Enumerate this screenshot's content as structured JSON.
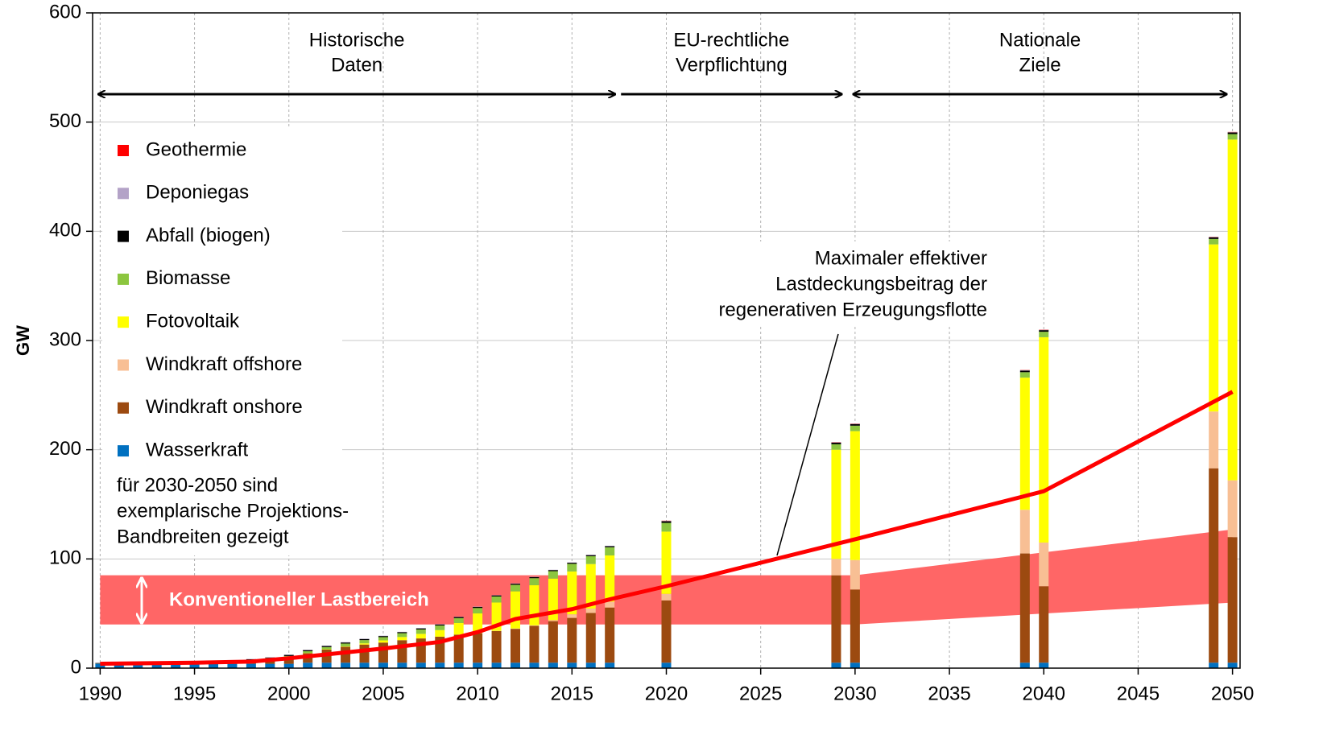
{
  "chart_data": {
    "type": "bar",
    "stacked": true,
    "ylabel": "GW",
    "xlim": [
      1989.6,
      2050.4
    ],
    "xticks": [
      1990,
      1995,
      2000,
      2005,
      2010,
      2015,
      2020,
      2025,
      2030,
      2035,
      2040,
      2045,
      2050
    ],
    "ylim": [
      0,
      600
    ],
    "yticks": [
      0,
      100,
      200,
      300,
      400,
      500,
      600
    ],
    "grid": true,
    "x": [
      1990,
      1991,
      1992,
      1993,
      1994,
      1995,
      1996,
      1997,
      1998,
      1999,
      2000,
      2001,
      2002,
      2003,
      2004,
      2005,
      2006,
      2007,
      2008,
      2009,
      2010,
      2011,
      2012,
      2013,
      2014,
      2015,
      2016,
      2017,
      2020,
      2029,
      2030,
      2039,
      2040,
      2049,
      2050
    ],
    "series": [
      {
        "name": "Wasserkraft",
        "color": "#0070c0",
        "values": [
          4,
          4,
          4,
          4,
          4,
          4,
          4,
          4,
          4,
          4,
          4,
          5,
          5,
          5,
          5,
          5,
          5,
          5,
          5,
          5,
          5,
          5,
          5,
          5,
          5,
          5,
          5,
          5,
          5,
          5,
          5,
          5,
          5,
          5,
          5
        ]
      },
      {
        "name": "Windkraft onshore",
        "color": "#9c4a10",
        "values": [
          0,
          0.1,
          0.2,
          0.3,
          0.6,
          1.1,
          1.5,
          2,
          2.9,
          4.4,
          6,
          8.8,
          12,
          14.6,
          16.6,
          18.4,
          20.6,
          22.2,
          23.8,
          25.7,
          27,
          29,
          31,
          33.7,
          38,
          41,
          45.5,
          50.5,
          57,
          80,
          67,
          100,
          70,
          178,
          115
        ]
      },
      {
        "name": "Windkraft offshore",
        "color": "#f8bf94",
        "values": [
          0,
          0,
          0,
          0,
          0,
          0,
          0,
          0,
          0,
          0,
          0,
          0,
          0,
          0,
          0,
          0,
          0,
          0,
          0,
          0,
          0.1,
          0.2,
          0.3,
          0.5,
          1,
          3.3,
          4.1,
          5.4,
          6,
          15,
          27,
          40,
          40,
          52,
          52
        ]
      },
      {
        "name": "Fotovoltaik",
        "color": "#ffff00",
        "values": [
          0,
          0,
          0,
          0,
          0,
          0,
          0,
          0,
          0,
          0,
          0.1,
          0.2,
          0.3,
          0.4,
          1.1,
          2,
          2.9,
          4.2,
          6,
          10.6,
          18,
          25.9,
          34,
          36.7,
          38,
          39.2,
          40.7,
          42.3,
          57,
          100,
          118,
          121,
          188,
          153,
          312
        ]
      },
      {
        "name": "Biomasse",
        "color": "#8cc63f",
        "values": [
          0.2,
          0.2,
          0.3,
          0.3,
          0.4,
          0.5,
          0.6,
          0.7,
          0.8,
          0.9,
          1,
          1.5,
          2,
          2.5,
          3,
          3,
          3.5,
          4,
          4.2,
          4.5,
          5,
          5.5,
          6,
          6.5,
          6.8,
          7,
          7.2,
          7.5,
          8,
          5,
          5,
          5,
          5,
          5,
          5
        ]
      },
      {
        "name": "Abfall (biogen)",
        "color": "#000000",
        "values": [
          0.5,
          0.5,
          0.5,
          0.5,
          0.5,
          0.5,
          0.5,
          0.5,
          0.5,
          0.5,
          1,
          1,
          1,
          1,
          1,
          1,
          1,
          1,
          1,
          1,
          1,
          1,
          1,
          1,
          1,
          1,
          1,
          1,
          1.5,
          1.5,
          1.5,
          1.5,
          1.5,
          1.5,
          1.5
        ]
      },
      {
        "name": "Deponiegas",
        "color": "#b3a2c7",
        "values": [
          0.2,
          0.2,
          0.2,
          0.2,
          0.2,
          0.2,
          0.2,
          0.2,
          0.2,
          0.2,
          0.3,
          0.3,
          0.3,
          0.3,
          0.3,
          0.3,
          0.3,
          0.3,
          0.3,
          0.3,
          0.3,
          0.3,
          0.3,
          0.3,
          0.3,
          0.3,
          0.3,
          0.3,
          0.3,
          0.3,
          0.3,
          0.3,
          0.3,
          0.3,
          0.3
        ]
      },
      {
        "name": "Geothermie",
        "color": "#ff0000",
        "values": [
          0,
          0,
          0,
          0,
          0,
          0,
          0,
          0,
          0,
          0,
          0,
          0,
          0,
          0,
          0,
          0,
          0,
          0,
          0,
          0,
          0,
          0,
          0,
          0,
          0,
          0,
          0,
          0,
          0.2,
          0.2,
          0.2,
          0.2,
          0.2,
          0.2,
          0.2
        ]
      }
    ],
    "line": {
      "color": "#ff0000",
      "x": [
        1990,
        1995,
        1998,
        2000,
        2005,
        2008,
        2010,
        2012,
        2015,
        2017,
        2020,
        2030,
        2040,
        2050
      ],
      "values": [
        4,
        5,
        6,
        9,
        18,
        24,
        33,
        45,
        54,
        63,
        75,
        118,
        162,
        253
      ],
      "annotation": [
        "Maximaler effektiver",
        "Lastdeckungsbeitrag der",
        "regenerativen Erzeugungsflotte"
      ]
    },
    "band": {
      "label": "Konventioneller Lastbereich",
      "color": "#ff6666",
      "x": [
        1990,
        2030,
        2050
      ],
      "lower": [
        40,
        40,
        60
      ],
      "upper": [
        85,
        85,
        127
      ]
    },
    "periods": [
      {
        "label": [
          "Historische",
          "Daten"
        ],
        "from": 1989.9,
        "to": 2017.3
      },
      {
        "label": [
          "EU-rechtliche",
          "Verpflichtung"
        ],
        "from": 2017.6,
        "to": 2029.3
      },
      {
        "label": [
          "Nationale",
          "Ziele"
        ],
        "from": 2029.9,
        "to": 2049.7
      }
    ],
    "note": [
      "für 2030-2050 sind",
      "exemplarische Projektions-",
      "Bandbreiten gezeigt"
    ]
  }
}
